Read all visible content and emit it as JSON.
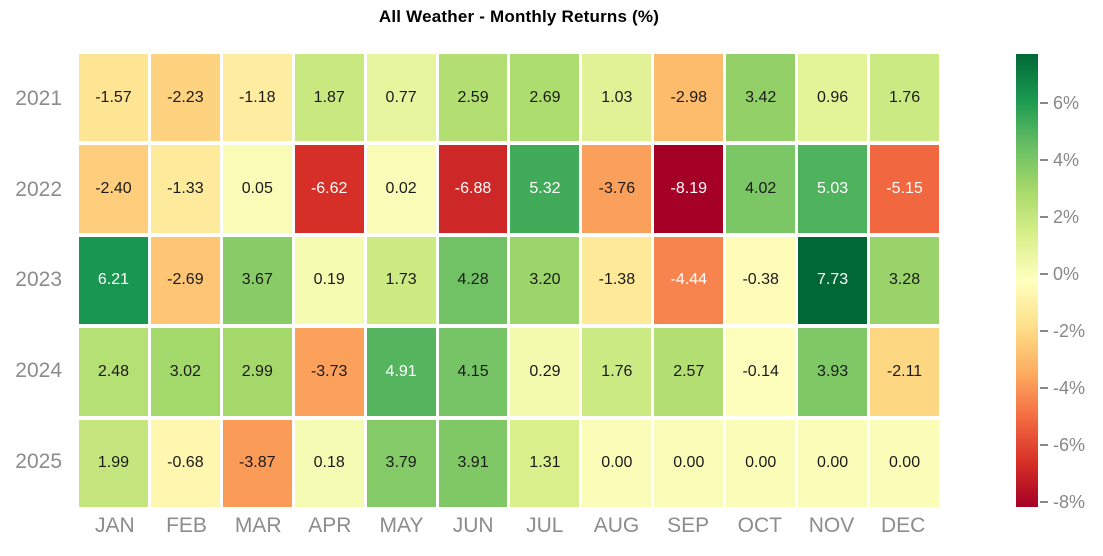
{
  "page": {
    "background_color": "#ffffff"
  },
  "chart_data": {
    "type": "heatmap",
    "title": "All Weather - Monthly Returns (%)",
    "rows": [
      "2021",
      "2022",
      "2023",
      "2024",
      "2025"
    ],
    "columns": [
      "JAN",
      "FEB",
      "MAR",
      "APR",
      "MAY",
      "JUN",
      "JUL",
      "AUG",
      "SEP",
      "OCT",
      "NOV",
      "DEC"
    ],
    "values": [
      [
        -1.57,
        -2.23,
        -1.18,
        1.87,
        0.77,
        2.59,
        2.69,
        1.03,
        -2.98,
        3.42,
        0.96,
        1.76
      ],
      [
        -2.4,
        -1.33,
        0.05,
        -6.62,
        0.02,
        -6.88,
        5.32,
        -3.76,
        -8.19,
        4.02,
        5.03,
        -5.15
      ],
      [
        6.21,
        -2.69,
        3.67,
        0.19,
        1.73,
        4.28,
        3.2,
        -1.38,
        -4.44,
        -0.38,
        7.73,
        3.28
      ],
      [
        2.48,
        3.02,
        2.99,
        -3.73,
        4.91,
        4.15,
        0.29,
        1.76,
        2.57,
        -0.14,
        3.93,
        -2.11
      ],
      [
        1.99,
        -0.68,
        -3.87,
        0.18,
        3.79,
        3.91,
        1.31,
        0.0,
        0.0,
        0.0,
        0.0,
        0.0
      ]
    ],
    "value_decimals": 2,
    "zmin": -8.19,
    "zmax": 7.73,
    "colorscale_name": "RdYlGn",
    "colorscale_stops": [
      "#a50026",
      "#d73027",
      "#f46d43",
      "#fdae61",
      "#fee08b",
      "#ffffbf",
      "#d9ef8b",
      "#a6d96a",
      "#66bd63",
      "#1a9850",
      "#006837"
    ],
    "colorbar": {
      "position": "right",
      "tick_values": [
        6,
        4,
        2,
        0,
        -2,
        -4,
        -6,
        -8
      ],
      "tick_labels": [
        "6%",
        "4%",
        "2%",
        "0%",
        "-2%",
        "-4%",
        "-6%",
        "-8%"
      ]
    },
    "grid": false,
    "axis_label_color": "#8c8c8c",
    "colorbar_tick_color": "#888888",
    "cell_text_dark": "#1a1a1a",
    "cell_text_light": "#ffffff",
    "title_color": "#000000"
  }
}
